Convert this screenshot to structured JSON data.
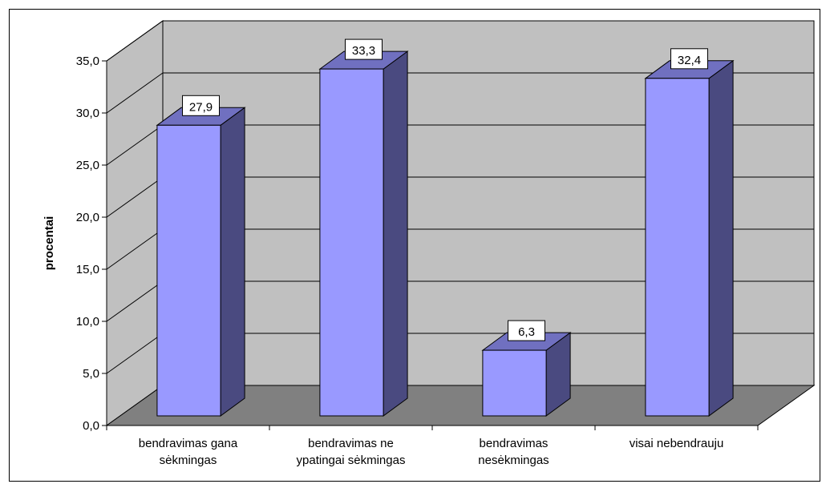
{
  "chart_data": {
    "type": "bar",
    "categories": [
      [
        "bendravimas gana",
        "sėkmingas"
      ],
      [
        "bendravimas ne",
        "ypatingai sėkmingas"
      ],
      [
        "bendravimas",
        "nesėkmingas"
      ],
      [
        "visai nebendrauju"
      ]
    ],
    "values": [
      27.9,
      33.3,
      6.3,
      32.4
    ],
    "data_labels": [
      "27,9",
      "33,3",
      "6,3",
      "32,4"
    ],
    "ylabel": "procentai",
    "ylim": [
      0,
      35
    ],
    "yticks": [
      "0,0",
      "5,0",
      "10,0",
      "15,0",
      "20,0",
      "25,0",
      "30,0",
      "35,0"
    ],
    "grid": true,
    "legend": "none",
    "style": "3d-column",
    "colors": {
      "bar_front": "#9999ff",
      "bar_side": "#4a4a80",
      "bar_top": "#7070c0",
      "wall": "#c0c0c0",
      "floor": "#808080"
    }
  }
}
